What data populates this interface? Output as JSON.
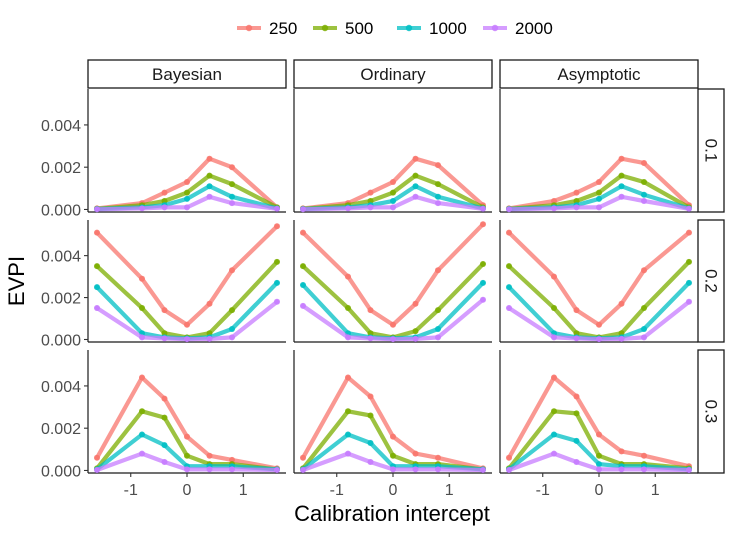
{
  "chart_data": {
    "type": "line",
    "xlabel": "Calibration intercept",
    "ylabel": "EVPI",
    "x": [
      -1.6,
      -0.8,
      -0.4,
      0,
      0.4,
      0.8,
      1.6
    ],
    "xlim": [
      -1.76,
      1.76
    ],
    "xticks": [
      -1,
      0,
      1
    ],
    "xtick_labels": [
      "-1",
      "0",
      "1"
    ],
    "legend_position": "top",
    "columns": [
      "Bayesian",
      "Ordinary",
      "Asymptotic"
    ],
    "series": [
      {
        "name": "250",
        "color": "#F8766D"
      },
      {
        "name": "500",
        "color": "#7CAE00"
      },
      {
        "name": "1000",
        "color": "#00BFC4"
      },
      {
        "name": "2000",
        "color": "#C77CFF"
      }
    ],
    "rows": [
      {
        "label": "0.1",
        "ylim": [
          -0.00012,
          0.0057
        ],
        "yticks": [
          0,
          0.002,
          0.004
        ],
        "ytick_labels": [
          "0.000",
          "0.002",
          "0.004"
        ],
        "values": {
          "Bayesian": [
            [
              5e-05,
              0.0003,
              0.0008,
              0.0013,
              0.0024,
              0.002,
              0.0001
            ],
            [
              3e-05,
              0.0002,
              0.0004,
              0.0008,
              0.0016,
              0.0012,
              0.0001
            ],
            [
              2e-05,
              0.0001,
              0.0002,
              0.0005,
              0.0011,
              0.0006,
              5e-05
            ],
            [
              1e-05,
              5e-05,
              0.0001,
              0.0001,
              0.0006,
              0.0003,
              3e-05
            ]
          ],
          "Ordinary": [
            [
              5e-05,
              0.0003,
              0.0008,
              0.0013,
              0.0024,
              0.0021,
              0.0002
            ],
            [
              3e-05,
              0.0002,
              0.0004,
              0.0008,
              0.0016,
              0.0012,
              0.0001
            ],
            [
              2e-05,
              0.0001,
              0.0002,
              0.0004,
              0.0011,
              0.0006,
              5e-05
            ],
            [
              1e-05,
              5e-05,
              0.0001,
              0.0001,
              0.0006,
              0.0003,
              3e-05
            ]
          ],
          "Asymptotic": [
            [
              5e-05,
              0.0004,
              0.0008,
              0.0013,
              0.0024,
              0.0022,
              0.0002
            ],
            [
              3e-05,
              0.0002,
              0.0004,
              0.0008,
              0.0016,
              0.0013,
              0.0001
            ],
            [
              2e-05,
              0.0001,
              0.0002,
              0.0005,
              0.0011,
              0.0007,
              5e-05
            ],
            [
              1e-05,
              5e-05,
              0.0001,
              0.0001,
              0.0006,
              0.0004,
              3e-05
            ]
          ]
        }
      },
      {
        "label": "0.2",
        "ylim": [
          -0.00012,
          0.0057
        ],
        "yticks": [
          0,
          0.002,
          0.004
        ],
        "ytick_labels": [
          "0.000",
          "0.002",
          "0.004"
        ],
        "values": {
          "Bayesian": [
            [
              0.0051,
              0.0029,
              0.0014,
              0.0007,
              0.0017,
              0.0033,
              0.0054
            ],
            [
              0.0035,
              0.0015,
              0.0003,
              0.0001,
              0.0003,
              0.0014,
              0.0037
            ],
            [
              0.0025,
              0.0003,
              0.0001,
              5e-05,
              0.0001,
              0.0005,
              0.0027
            ],
            [
              0.0015,
              0.0001,
              5e-05,
              2e-05,
              3e-05,
              0.0001,
              0.0018
            ]
          ],
          "Ordinary": [
            [
              0.0051,
              0.003,
              0.0014,
              0.0007,
              0.0017,
              0.0033,
              0.0055
            ],
            [
              0.0035,
              0.0015,
              0.0003,
              0.0001,
              0.0004,
              0.0014,
              0.0036
            ],
            [
              0.0026,
              0.0003,
              0.0001,
              5e-05,
              0.0001,
              0.0005,
              0.0027
            ],
            [
              0.0016,
              0.0001,
              5e-05,
              2e-05,
              3e-05,
              0.0001,
              0.0019
            ]
          ],
          "Asymptotic": [
            [
              0.0051,
              0.003,
              0.0014,
              0.0007,
              0.0017,
              0.0033,
              0.0051
            ],
            [
              0.0035,
              0.0015,
              0.0003,
              0.0001,
              0.0003,
              0.0015,
              0.0037
            ],
            [
              0.0025,
              0.0003,
              0.0001,
              5e-05,
              0.0001,
              0.0005,
              0.0027
            ],
            [
              0.0015,
              0.0001,
              5e-05,
              2e-05,
              3e-05,
              0.0001,
              0.0018
            ]
          ]
        }
      },
      {
        "label": "0.3",
        "ylim": [
          -0.00012,
          0.0057
        ],
        "yticks": [
          0,
          0.002,
          0.004
        ],
        "ytick_labels": [
          "0.000",
          "0.002",
          "0.004"
        ],
        "values": {
          "Bayesian": [
            [
              0.0006,
              0.0044,
              0.0034,
              0.0016,
              0.0007,
              0.0005,
              0.0001
            ],
            [
              0.0001,
              0.0028,
              0.0025,
              0.0007,
              0.0003,
              0.0003,
              5e-05
            ],
            [
              5e-05,
              0.0017,
              0.0012,
              0.0002,
              0.0002,
              0.0002,
              5e-05
            ],
            [
              2e-05,
              0.0008,
              0.0004,
              5e-05,
              5e-05,
              5e-05,
              2e-05
            ]
          ],
          "Ordinary": [
            [
              0.0006,
              0.0044,
              0.0035,
              0.0016,
              0.0008,
              0.0006,
              0.0001
            ],
            [
              0.0001,
              0.0028,
              0.0026,
              0.0007,
              0.0003,
              0.0003,
              5e-05
            ],
            [
              5e-05,
              0.0017,
              0.0013,
              0.0002,
              0.0002,
              0.0002,
              5e-05
            ],
            [
              2e-05,
              0.0008,
              0.0004,
              5e-05,
              5e-05,
              5e-05,
              2e-05
            ]
          ],
          "Asymptotic": [
            [
              0.0006,
              0.0044,
              0.0035,
              0.0017,
              0.0009,
              0.0007,
              0.0002
            ],
            [
              0.0001,
              0.0028,
              0.0027,
              0.0007,
              0.0003,
              0.0003,
              0.0001
            ],
            [
              5e-05,
              0.0017,
              0.0014,
              0.0003,
              0.0002,
              0.0002,
              5e-05
            ],
            [
              2e-05,
              0.0008,
              0.0004,
              5e-05,
              5e-05,
              5e-05,
              2e-05
            ]
          ]
        }
      }
    ]
  }
}
